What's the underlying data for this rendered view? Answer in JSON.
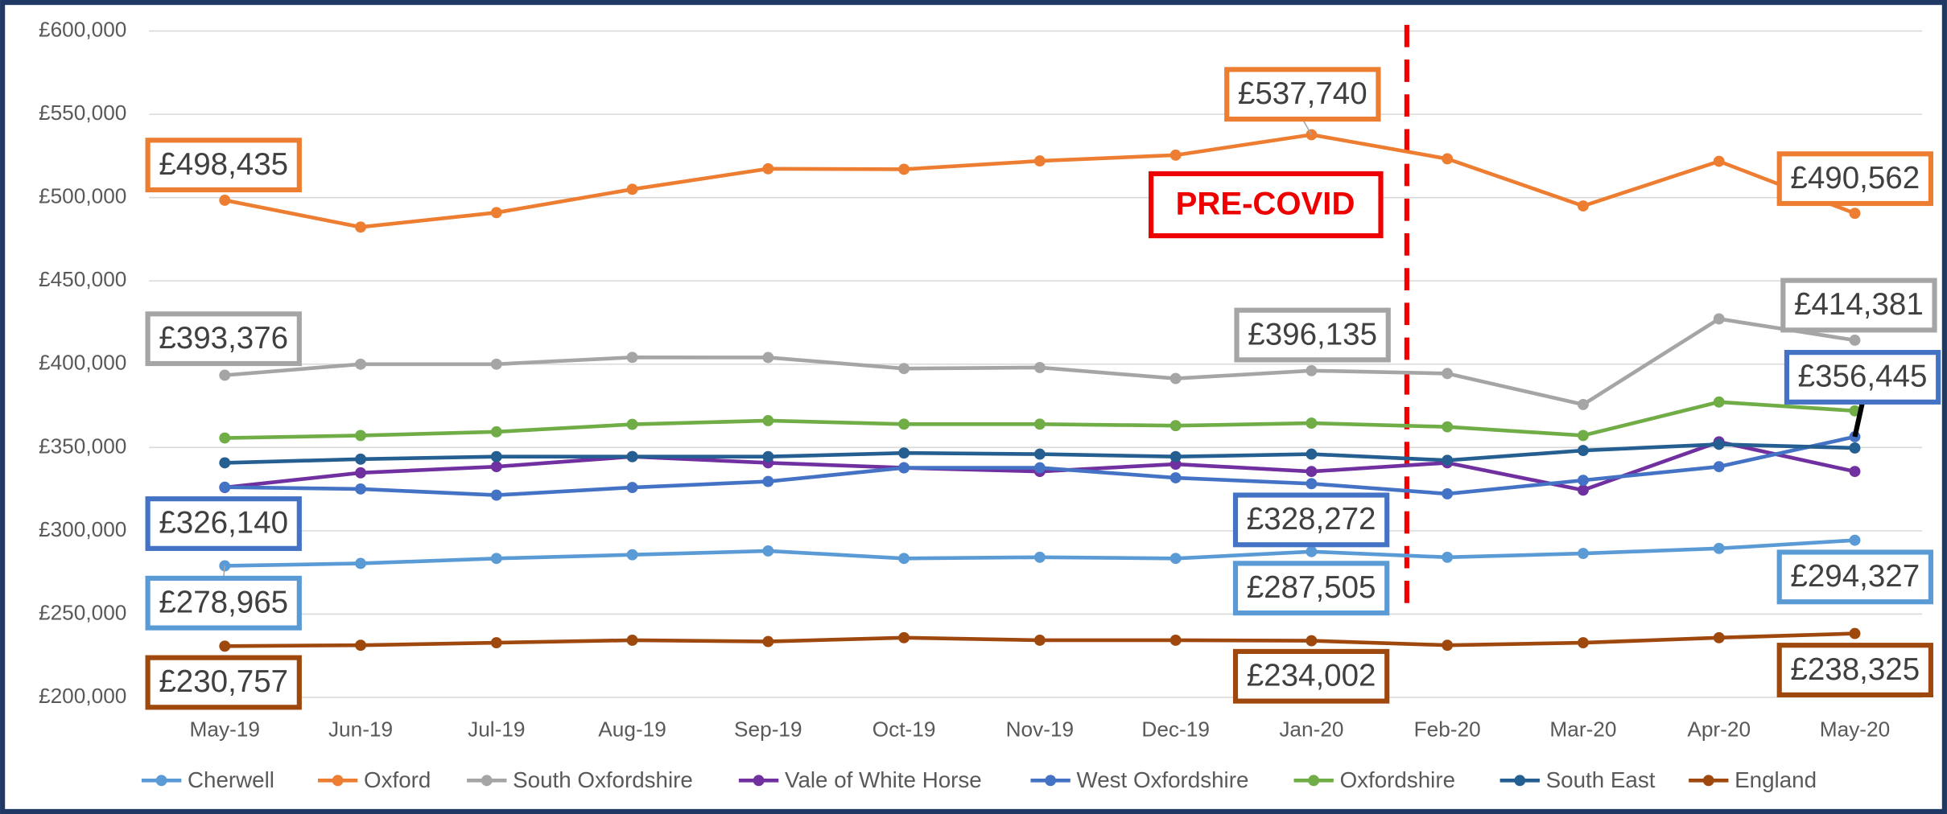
{
  "chart_data": {
    "type": "line",
    "categories": [
      "May-19",
      "Jun-19",
      "Jul-19",
      "Aug-19",
      "Sep-19",
      "Oct-19",
      "Nov-19",
      "Dec-19",
      "Jan-20",
      "Feb-20",
      "Mar-20",
      "Apr-20",
      "May-20"
    ],
    "ylim": [
      200000,
      600000
    ],
    "yticks": [
      {
        "value": 200000,
        "label": "£200,000"
      },
      {
        "value": 250000,
        "label": "£250,000"
      },
      {
        "value": 300000,
        "label": "£300,000"
      },
      {
        "value": 350000,
        "label": "£350,000"
      },
      {
        "value": 400000,
        "label": "£400,000"
      },
      {
        "value": 450000,
        "label": "£450,000"
      },
      {
        "value": 500000,
        "label": "£500,000"
      },
      {
        "value": 550000,
        "label": "£550,000"
      },
      {
        "value": 600000,
        "label": "£600,000"
      }
    ],
    "grid": true,
    "legend": "bottom",
    "annotation": "PRE-COVID",
    "series": [
      {
        "name": "Cherwell",
        "color": "#5b9bd5",
        "values": [
          278965,
          280400,
          283400,
          285600,
          287900,
          283400,
          284100,
          283400,
          287505,
          284100,
          286400,
          289400,
          294327
        ],
        "value_labels": [
          "£278,965",
          null,
          null,
          null,
          null,
          null,
          null,
          null,
          "£287,505",
          null,
          null,
          null,
          "£294,327"
        ]
      },
      {
        "name": "Oxford",
        "color": "#ed7d31",
        "values": [
          498435,
          482300,
          491000,
          505000,
          517300,
          517000,
          522000,
          525500,
          537740,
          523300,
          495000,
          521800,
          490562
        ],
        "value_labels": [
          "£498,435",
          null,
          null,
          null,
          null,
          null,
          null,
          null,
          "£537,740",
          null,
          null,
          null,
          "£490,562"
        ]
      },
      {
        "name": "South Oxfordshire",
        "color": "#a5a5a5",
        "values": [
          393376,
          400000,
          400000,
          404100,
          404000,
          397400,
          398000,
          391400,
          396135,
          394400,
          375800,
          427200,
          414381
        ],
        "value_labels": [
          "£393,376",
          null,
          null,
          null,
          null,
          null,
          null,
          null,
          "£396,135",
          null,
          null,
          null,
          "£414,381"
        ]
      },
      {
        "name": "Vale of White Horse",
        "color": "#7030a0",
        "values": [
          326000,
          334800,
          338500,
          344500,
          340800,
          337800,
          335600,
          340000,
          335600,
          340800,
          324400,
          353400,
          335600
        ]
      },
      {
        "name": "West Oxfordshire",
        "color": "#4472c4",
        "values": [
          326140,
          325100,
          321400,
          326000,
          329600,
          337800,
          337800,
          331800,
          328272,
          322200,
          330300,
          338500,
          356445
        ],
        "value_labels": [
          "£326,140",
          null,
          null,
          null,
          null,
          null,
          null,
          null,
          "£328,272",
          null,
          null,
          null,
          "£356,445"
        ]
      },
      {
        "name": "Oxfordshire",
        "color": "#70ad47",
        "values": [
          355700,
          357200,
          359400,
          363900,
          366100,
          364000,
          364000,
          363100,
          364600,
          362400,
          357200,
          377300,
          372000
        ]
      },
      {
        "name": "South East",
        "color": "#255e91",
        "values": [
          340800,
          343000,
          344500,
          344500,
          344500,
          346700,
          346000,
          344500,
          346000,
          342300,
          348200,
          351900,
          349700
        ]
      },
      {
        "name": "England",
        "color": "#9e480e",
        "values": [
          230757,
          231300,
          232800,
          234300,
          233500,
          235800,
          234300,
          234300,
          234002,
          231300,
          232800,
          235800,
          238325
        ],
        "value_labels": [
          "£230,757",
          null,
          null,
          null,
          null,
          null,
          null,
          null,
          "£234,002",
          null,
          null,
          null,
          "£238,325"
        ]
      }
    ]
  }
}
